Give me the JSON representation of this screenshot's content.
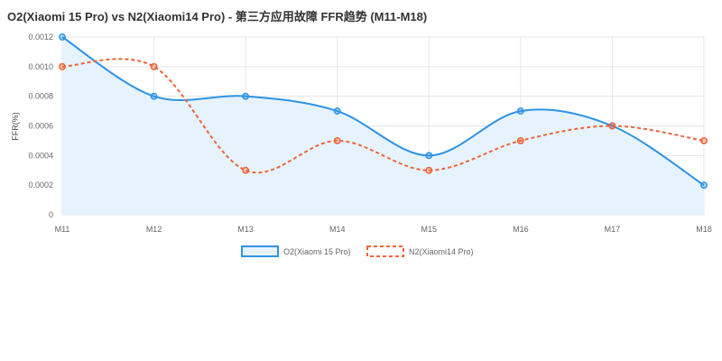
{
  "title": "O2(Xiaomi 15 Pro) vs N2(Xiaomi14 Pro) - 第三方应用故障 FFR趋势 (M11-M18)",
  "chart_data": {
    "type": "line",
    "title": "O2(Xiaomi 15 Pro) vs N2(Xiaomi14 Pro) - 第三方应用故障 FFR趋势 (M11-M18)",
    "xlabel": "",
    "ylabel": "FFR(%)",
    "categories": [
      "M11",
      "M12",
      "M13",
      "M14",
      "M15",
      "M16",
      "M17",
      "M18"
    ],
    "ylim": [
      0,
      0.0012
    ],
    "yticks": [
      "0",
      "0.0002",
      "0.0004",
      "0.0006",
      "0.0008",
      "0.0010",
      "0.0012"
    ],
    "grid": true,
    "legend_position": "bottom",
    "series": [
      {
        "name": "O2(Xiaomi 15 Pro)",
        "values": [
          0.0012,
          0.0008,
          0.0008,
          0.0007,
          0.0004,
          0.0007,
          0.0006,
          0.0002
        ],
        "color": "#2e93e6",
        "fill": "#e6f3fd",
        "dashed": false,
        "filled": true
      },
      {
        "name": "N2(Xiaomi14 Pro)",
        "values": [
          0.001,
          0.001,
          0.0003,
          0.0005,
          0.0003,
          0.0005,
          0.0006,
          0.0005
        ],
        "color": "#f0643a",
        "dashed": true,
        "filled": false
      }
    ]
  }
}
